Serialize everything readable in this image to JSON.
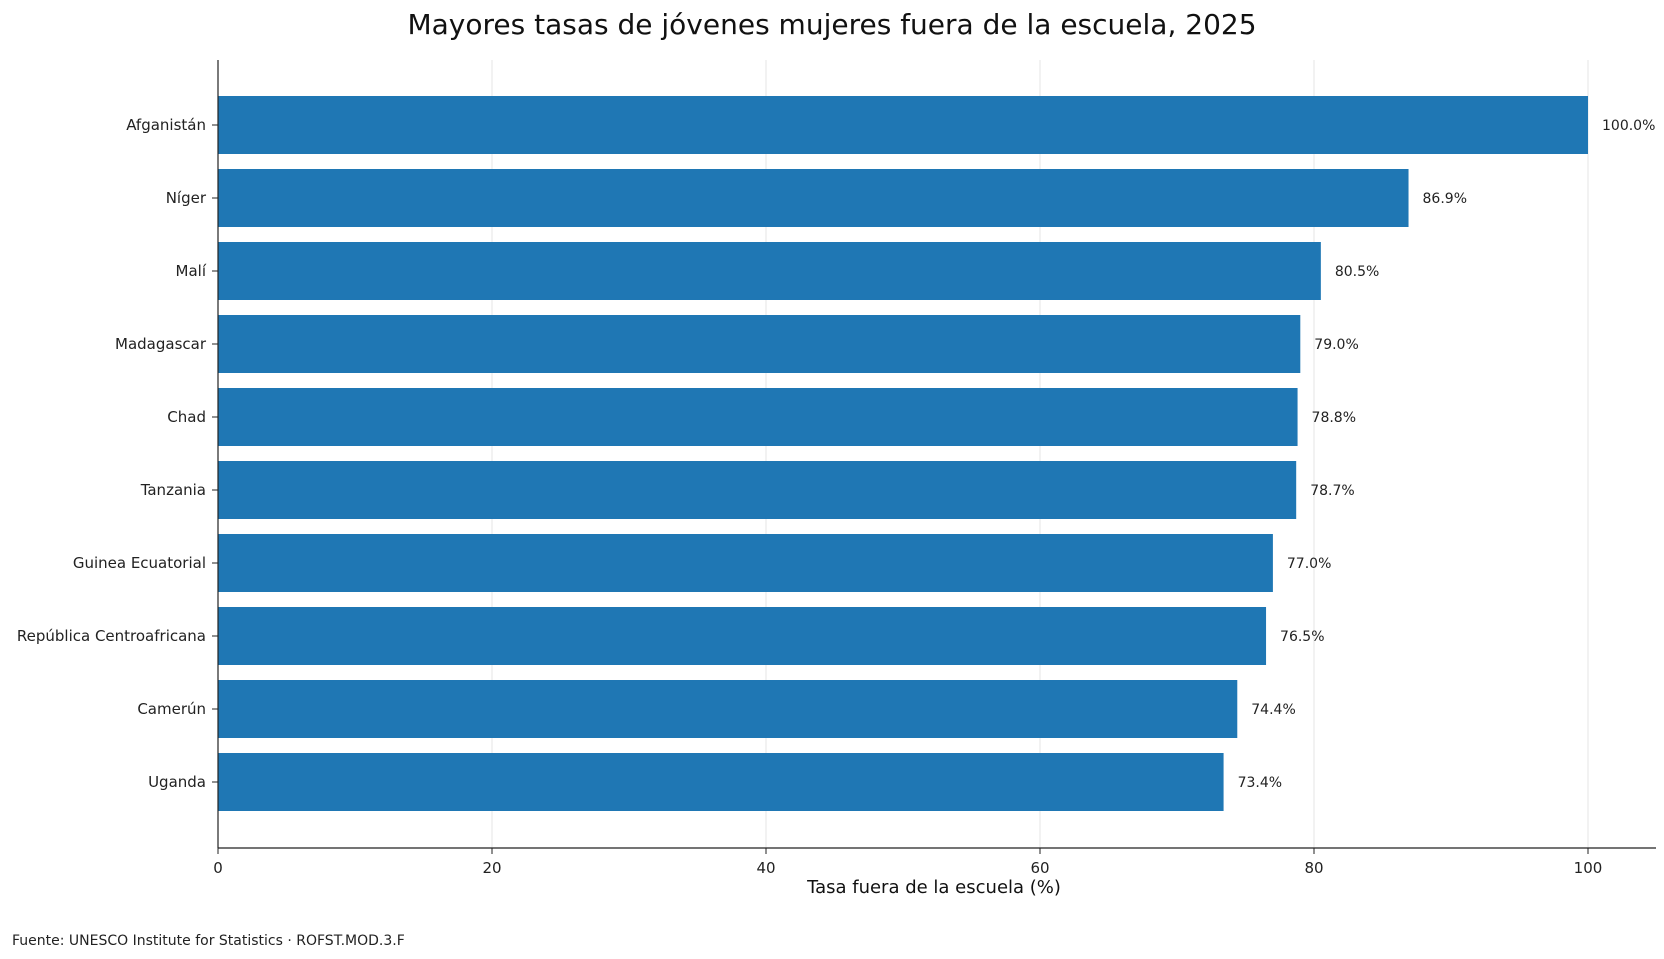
{
  "chart_data": {
    "type": "bar",
    "orientation": "horizontal",
    "title": "Mayores tasas de jóvenes mujeres fuera de la escuela, 2025",
    "xlabel": "Tasa fuera de la escuela (%)",
    "ylabel": "",
    "categories": [
      "Afganistán",
      "Níger",
      "Malí",
      "Madagascar",
      "Chad",
      "Tanzania",
      "Guinea Ecuatorial",
      "República Centroafricana",
      "Camerún",
      "Uganda"
    ],
    "values": [
      100.0,
      86.9,
      80.5,
      79.0,
      78.8,
      78.7,
      77.0,
      76.5,
      74.4,
      73.4
    ],
    "value_labels": [
      "100.0%",
      "86.9%",
      "80.5%",
      "79.0%",
      "78.8%",
      "78.7%",
      "77.0%",
      "76.5%",
      "74.4%",
      "73.4%"
    ],
    "xlim": [
      0,
      105
    ],
    "xticks": [
      0,
      20,
      40,
      60,
      80,
      100
    ],
    "grid": "vertical",
    "legend": "none",
    "bar_color": "#1f77b4",
    "source": "Fuente: UNESCO Institute for Statistics · ROFST.MOD.3.F"
  }
}
